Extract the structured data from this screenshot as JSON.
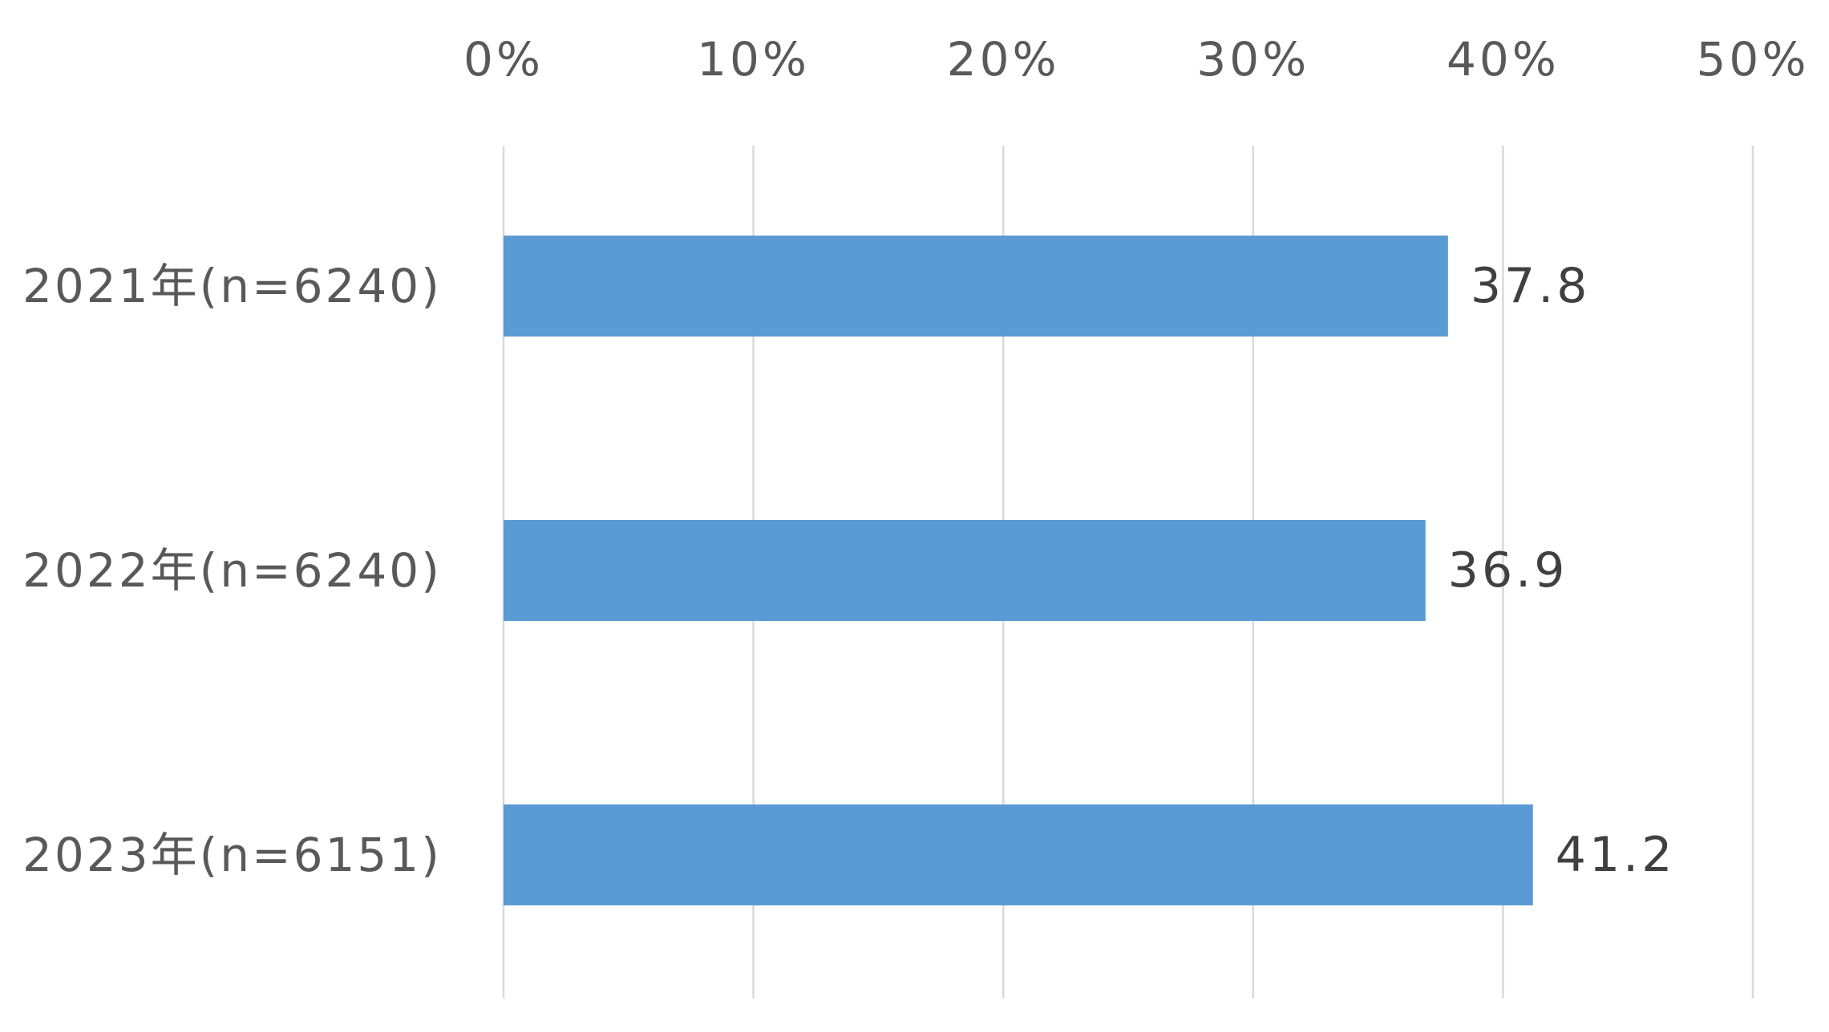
{
  "chart_data": {
    "type": "bar",
    "orientation": "horizontal",
    "categories": [
      "2021年(n=6240)",
      "2022年(n=6240)",
      "2023年(n=6151)"
    ],
    "values": [
      37.8,
      36.9,
      41.2
    ],
    "value_labels": [
      "37.8",
      "36.9",
      "41.2"
    ],
    "xlim": [
      0,
      50
    ],
    "x_ticks": [
      0,
      10,
      20,
      30,
      40,
      50
    ],
    "x_tick_labels": [
      "0%",
      "10%",
      "20%",
      "30%",
      "40%",
      "50%"
    ],
    "x_axis_position": "top",
    "grid": true,
    "legend": "none",
    "title": "",
    "xlabel": "",
    "ylabel": ""
  },
  "colors": {
    "bar": "#5b9bd5",
    "grid": "#d9d9d9",
    "tick_text": "#595959",
    "category_text": "#595959",
    "value_text": "#404040",
    "background": "#ffffff"
  }
}
